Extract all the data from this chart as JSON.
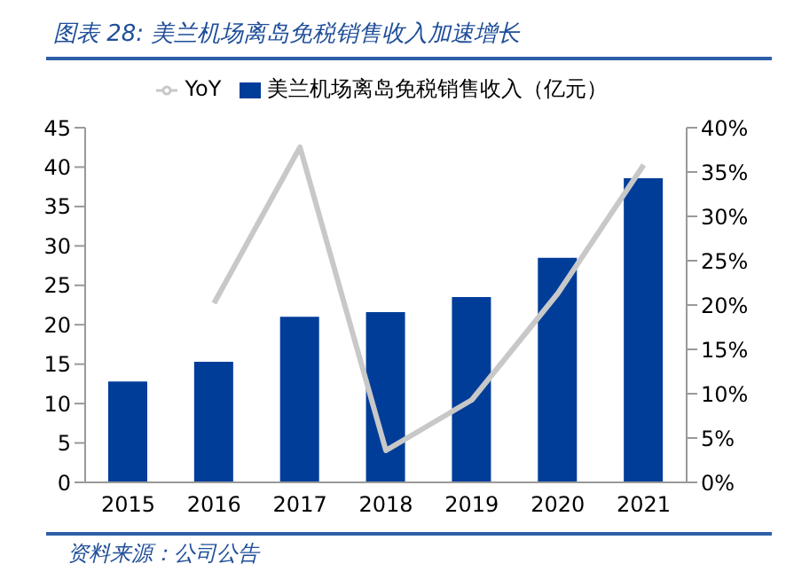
{
  "chart_data": {
    "type": "bar",
    "title": "图表 28:  美兰机场离岛免税销售收入加速增长",
    "categories": [
      "2015",
      "2016",
      "2017",
      "2018",
      "2019",
      "2020",
      "2021"
    ],
    "series": [
      {
        "name": "美兰机场离岛免税销售收入（亿元）",
        "color": "#003d99",
        "values": [
          12.8,
          15.3,
          21.0,
          21.6,
          23.5,
          28.5,
          38.6
        ]
      },
      {
        "name": "YoY",
        "type": "line",
        "axis": "y2",
        "color": "#c8c8c8",
        "values": [
          null,
          20.2,
          37.8,
          3.6,
          9.3,
          21.3,
          35.8
        ]
      }
    ],
    "ylim": [
      0,
      45
    ],
    "yticks": [
      0,
      5,
      10,
      15,
      20,
      25,
      30,
      35,
      40,
      45
    ],
    "y2lim": [
      0,
      40
    ],
    "y2ticks": [
      {
        "value": 0,
        "label": "0%"
      },
      {
        "value": 5,
        "label": "5%"
      },
      {
        "value": 10,
        "label": "10%"
      },
      {
        "value": 15,
        "label": "15%"
      },
      {
        "value": 20,
        "label": "20%"
      },
      {
        "value": 25,
        "label": "25%"
      },
      {
        "value": 30,
        "label": "30%"
      },
      {
        "value": 35,
        "label": "35%"
      },
      {
        "value": 40,
        "label": "40%"
      }
    ],
    "legend": "top",
    "marker": "none",
    "grid": false,
    "annotations": [
      "资料来源：公司公告"
    ]
  }
}
